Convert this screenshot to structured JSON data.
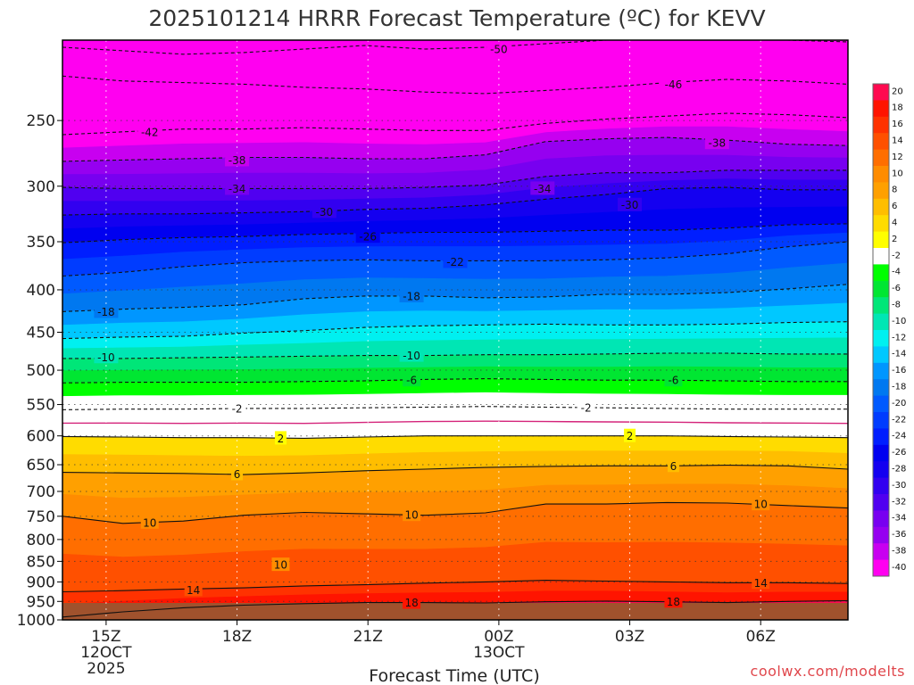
{
  "chart_data": {
    "type": "heatmap",
    "title": "2025101214 HRRR Forecast Temperature (ºC) for KEVV",
    "xlabel": "Forecast Time (UTC)",
    "ylabel": "",
    "x_ticks": [
      {
        "hour": 0,
        "lines": [
          "15Z",
          "12OCT",
          "2025"
        ]
      },
      {
        "hour": 3,
        "lines": [
          "18Z"
        ]
      },
      {
        "hour": 6,
        "lines": [
          "21Z"
        ]
      },
      {
        "hour": 9,
        "lines": [
          "00Z",
          "13OCT"
        ]
      },
      {
        "hour": 12,
        "lines": [
          "03Z"
        ]
      },
      {
        "hour": 15,
        "lines": [
          "06Z"
        ]
      }
    ],
    "xlim": [
      -1,
      17
    ],
    "y_ticks": [
      250,
      300,
      350,
      400,
      450,
      500,
      550,
      600,
      650,
      700,
      750,
      800,
      850,
      900,
      950,
      1000
    ],
    "ylim_hpa": [
      200,
      1000
    ],
    "y_scale": "log",
    "colorbar": {
      "levels": [
        20,
        18,
        16,
        14,
        12,
        10,
        8,
        6,
        4,
        2,
        -2,
        -4,
        -6,
        -8,
        -10,
        -12,
        -14,
        -16,
        -18,
        -20,
        -22,
        -24,
        -26,
        -28,
        -30,
        -32,
        -34,
        -36,
        -38,
        -40
      ],
      "colors": [
        "#ff0a50",
        "#ff1400",
        "#ff3200",
        "#ff5000",
        "#ff6e00",
        "#ff8c00",
        "#ffa000",
        "#ffbe00",
        "#ffdc00",
        "#ffff00",
        "#ffffff",
        "#00ff00",
        "#00e632",
        "#00e678",
        "#00e6b4",
        "#00f0f0",
        "#00c8ff",
        "#0096ff",
        "#0078f0",
        "#005aff",
        "#003cff",
        "#001eff",
        "#0000f0",
        "#1400f0",
        "#3200f0",
        "#5000f0",
        "#7800f0",
        "#9600f0",
        "#c800f0",
        "#ff00f0"
      ]
    },
    "surface_color": "#a0522d",
    "isotherms": [
      {
        "level": -50,
        "p": [
          204,
          206,
          208,
          207,
          205,
          203,
          205,
          204,
          202,
          200,
          199,
          199,
          200,
          201
        ]
      },
      {
        "level": -46,
        "p": [
          221,
          224,
          225,
          226,
          228,
          229,
          231,
          232,
          230,
          228,
          225,
          223,
          224,
          226
        ]
      },
      {
        "level": -42,
        "p": [
          260,
          258,
          256,
          256,
          255,
          256,
          257,
          257,
          252,
          249,
          247,
          245,
          246,
          248
        ]
      },
      {
        "level": -38,
        "p": [
          280,
          279,
          278,
          277,
          277,
          278,
          278,
          275,
          265,
          263,
          262,
          264,
          267,
          268
        ]
      },
      {
        "level": -34,
        "p": [
          301,
          302,
          302,
          302,
          302,
          302,
          301,
          299,
          292,
          289,
          289,
          287,
          287,
          287
        ]
      },
      {
        "level": -30,
        "p": [
          325,
          324,
          324,
          323,
          322,
          320,
          319,
          316,
          311,
          307,
          302,
          301,
          303,
          303
        ]
      },
      {
        "level": -26,
        "p": [
          351,
          348,
          346,
          345,
          343,
          342,
          341,
          341,
          340,
          339,
          339,
          337,
          334,
          333
        ]
      },
      {
        "level": -22,
        "p": [
          385,
          381,
          375,
          371,
          369,
          368,
          369,
          369,
          369,
          368,
          366,
          362,
          355,
          350
        ]
      },
      {
        "level": -18,
        "p": [
          425,
          422,
          420,
          417,
          410,
          407,
          407,
          409,
          408,
          405,
          405,
          403,
          399,
          394
        ]
      },
      {
        "level": -14,
        "p": [
          458,
          456,
          455,
          451,
          448,
          444,
          442,
          441,
          440,
          441,
          441,
          440,
          438,
          437
        ]
      },
      {
        "level": -10,
        "p": [
          484,
          484,
          483,
          482,
          481,
          480,
          480,
          479,
          479,
          478,
          477,
          477,
          478,
          478
        ]
      },
      {
        "level": -6,
        "p": [
          518,
          517,
          517,
          517,
          516,
          515,
          513,
          512,
          513,
          514,
          514,
          515,
          516,
          516
        ]
      },
      {
        "level": -2,
        "p": [
          558,
          557,
          557,
          556,
          556,
          555,
          554,
          553,
          554,
          555,
          556,
          557,
          557,
          557
        ]
      },
      {
        "level": 2,
        "p": [
          601,
          602,
          603,
          603,
          604,
          602,
          600,
          600,
          600,
          600,
          600,
          601,
          602,
          603
        ]
      },
      {
        "level": 6,
        "p": [
          664,
          665,
          666,
          668,
          665,
          661,
          658,
          655,
          653,
          652,
          652,
          651,
          652,
          658
        ]
      },
      {
        "level": 10,
        "p": [
          750,
          765,
          760,
          748,
          742,
          745,
          748,
          743,
          725,
          725,
          722,
          723,
          728,
          733
        ]
      },
      {
        "level": 14,
        "p": [
          925,
          922,
          918,
          915,
          910,
          907,
          903,
          900,
          896,
          898,
          900,
          902,
          902,
          904
        ]
      },
      {
        "level": 18,
        "p": [
          992,
          978,
          967,
          960,
          956,
          953,
          953,
          954,
          951,
          949,
          951,
          953,
          950,
          948
        ]
      }
    ],
    "isotherm_labels": [
      {
        "text": "-50",
        "h": 9,
        "p": 205
      },
      {
        "text": "-46",
        "h": 13,
        "p": 226
      },
      {
        "text": "-42",
        "h": 1,
        "p": 258
      },
      {
        "text": "-38",
        "h": 3,
        "p": 279
      },
      {
        "text": "-38",
        "h": 14,
        "p": 266
      },
      {
        "text": "-34",
        "h": 3,
        "p": 302
      },
      {
        "text": "-34",
        "h": 10,
        "p": 302
      },
      {
        "text": "-30",
        "h": 5,
        "p": 322
      },
      {
        "text": "-30",
        "h": 12,
        "p": 316
      },
      {
        "text": "-26",
        "h": 6,
        "p": 345
      },
      {
        "text": "-22",
        "h": 8,
        "p": 370
      },
      {
        "text": "-18",
        "h": 0,
        "p": 425
      },
      {
        "text": "-18",
        "h": 7,
        "p": 407
      },
      {
        "text": "-10",
        "h": 0,
        "p": 482
      },
      {
        "text": "-10",
        "h": 7,
        "p": 480
      },
      {
        "text": "-6",
        "h": 7,
        "p": 514
      },
      {
        "text": "-6",
        "h": 13,
        "p": 514
      },
      {
        "text": "-2",
        "h": 3,
        "p": 556
      },
      {
        "text": "-2",
        "h": 11,
        "p": 555
      },
      {
        "text": "2",
        "h": 4,
        "p": 604
      },
      {
        "text": "2",
        "h": 12,
        "p": 600
      },
      {
        "text": "6",
        "h": 3,
        "p": 667
      },
      {
        "text": "6",
        "h": 13,
        "p": 652
      },
      {
        "text": "10",
        "h": 1,
        "p": 763
      },
      {
        "text": "10",
        "h": 7,
        "p": 747
      },
      {
        "text": "10",
        "h": 15,
        "p": 725
      },
      {
        "text": "10",
        "h": 4,
        "p": 858
      },
      {
        "text": "14",
        "h": 2,
        "p": 920
      },
      {
        "text": "14",
        "h": 15,
        "p": 902
      },
      {
        "text": "18",
        "h": 7,
        "p": 953
      },
      {
        "text": "18",
        "h": 13,
        "p": 950
      }
    ]
  },
  "footer": {
    "credit": "coolwx.com/modelts"
  }
}
